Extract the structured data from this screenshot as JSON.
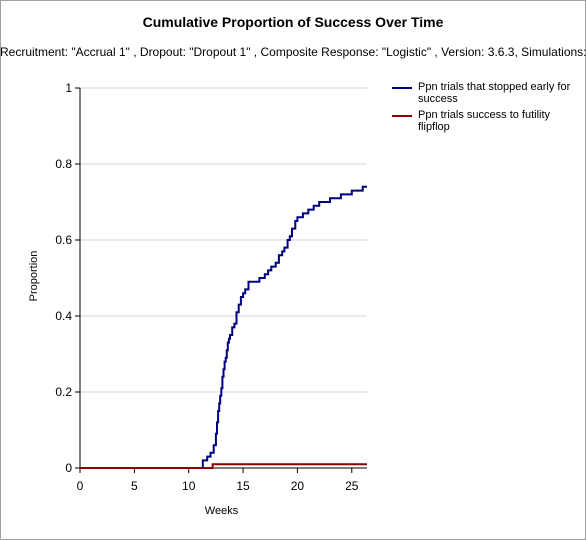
{
  "chart_data": {
    "type": "line",
    "title": "Cumulative Proportion of Success Over Time",
    "subtitle": "Recruitment: \"Accrual 1\" , Dropout: \"Dropout 1\" , Composite Response: \"Logistic\" , Version: 3.6.3, Simulations:",
    "xlabel": "Weeks",
    "ylabel": "Proportion",
    "xlim": [
      0,
      26.4
    ],
    "ylim": [
      0,
      1
    ],
    "xticks": [
      "0",
      "5",
      "10",
      "15",
      "20",
      "25"
    ],
    "yticks": [
      "0",
      "0.2",
      "0.4",
      "0.6",
      "0.8",
      "1"
    ],
    "grid": "horizontal",
    "legend_position": "top-right",
    "series": [
      {
        "name": "Ppn trials that stopped early for success",
        "color": "#000080",
        "step": true,
        "x": [
          0,
          11.3,
          11.7,
          12.0,
          12.3,
          12.5,
          12.6,
          12.7,
          12.8,
          12.9,
          13.0,
          13.1,
          13.2,
          13.3,
          13.4,
          13.5,
          13.6,
          13.7,
          13.8,
          14.0,
          14.2,
          14.4,
          14.6,
          14.8,
          15.0,
          15.2,
          15.5,
          16.0,
          16.5,
          17.0,
          17.3,
          17.6,
          18.0,
          18.3,
          18.6,
          18.8,
          19.1,
          19.3,
          19.5,
          19.8,
          20.0,
          20.5,
          21.0,
          21.5,
          22.0,
          22.5,
          23.0,
          24.0,
          25.0,
          26.0,
          26.4
        ],
        "y": [
          0,
          0.02,
          0.03,
          0.04,
          0.06,
          0.09,
          0.12,
          0.15,
          0.17,
          0.19,
          0.21,
          0.24,
          0.26,
          0.28,
          0.29,
          0.31,
          0.33,
          0.34,
          0.35,
          0.37,
          0.38,
          0.41,
          0.43,
          0.45,
          0.46,
          0.47,
          0.49,
          0.49,
          0.5,
          0.51,
          0.52,
          0.53,
          0.54,
          0.56,
          0.57,
          0.58,
          0.6,
          0.61,
          0.63,
          0.65,
          0.66,
          0.67,
          0.68,
          0.69,
          0.7,
          0.7,
          0.71,
          0.72,
          0.73,
          0.74,
          0.74
        ]
      },
      {
        "name": "Ppn trials success to futility flipflop",
        "color": "#8b0000",
        "step": true,
        "x": [
          0,
          12.2,
          26.4
        ],
        "y": [
          0,
          0.01,
          0.01
        ]
      }
    ]
  }
}
